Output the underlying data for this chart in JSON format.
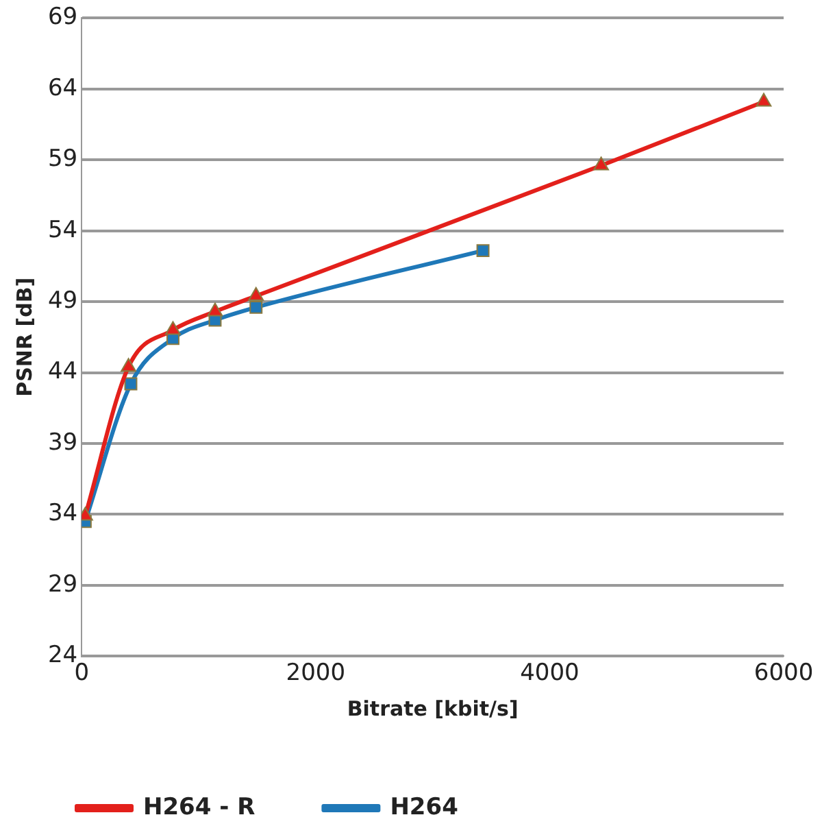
{
  "chart_data": {
    "type": "line",
    "xlabel": "Bitrate [kbit/s]",
    "ylabel": "PSNR [dB]",
    "series": [
      {
        "name": "H264 - R",
        "color": "#e3201b",
        "marker": "triangle",
        "x": [
          30,
          400,
          780,
          1140,
          1490,
          4440,
          5830
        ],
        "values": [
          33.9,
          44.4,
          47.0,
          48.3,
          49.4,
          58.6,
          63.1
        ]
      },
      {
        "name": "H264",
        "color": "#1f78b8",
        "marker": "square",
        "x": [
          30,
          420,
          780,
          1140,
          1490,
          3430
        ],
        "values": [
          33.5,
          43.2,
          46.4,
          47.7,
          48.6,
          52.6
        ]
      }
    ],
    "xlim": [
      0,
      6000
    ],
    "xticks": [
      0,
      2000,
      4000,
      6000
    ],
    "ylim": [
      24,
      69
    ],
    "yticks": [
      24,
      29,
      34,
      39,
      44,
      49,
      54,
      59,
      64,
      69
    ],
    "grid": "y",
    "legend": "bottom left"
  }
}
